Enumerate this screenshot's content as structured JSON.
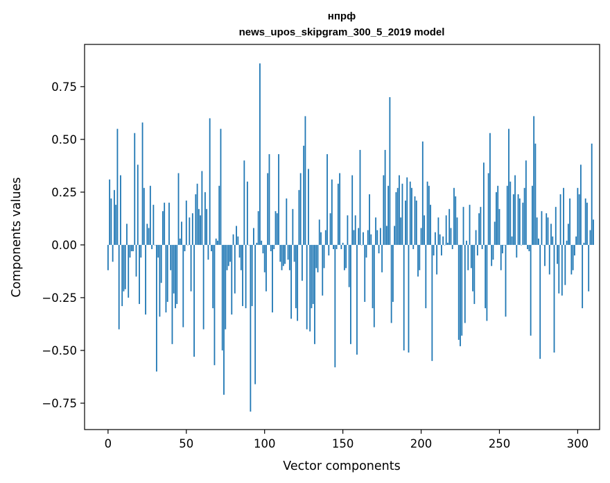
{
  "chart_data": {
    "type": "bar",
    "title_line1": "нпрф",
    "title_line2": "news_upos_skipgram_300_5_2019 model",
    "xlabel": "Vector components",
    "ylabel": "Components values",
    "xlim": [
      -15,
      314
    ],
    "ylim": [
      -0.875,
      0.95
    ],
    "x_ticks": [
      0,
      50,
      100,
      150,
      200,
      250,
      300
    ],
    "x_tick_labels": [
      "0",
      "50",
      "100",
      "150",
      "200",
      "250",
      "300"
    ],
    "y_ticks": [
      -0.75,
      -0.5,
      -0.25,
      0.0,
      0.25,
      0.5,
      0.75
    ],
    "y_tick_labels": [
      "−0.75",
      "−0.50",
      "−0.25",
      "0.00",
      "0.25",
      "0.50",
      "0.75"
    ],
    "bar_color": "#1f77b4",
    "values": [
      -0.12,
      0.31,
      0.22,
      -0.08,
      0.26,
      0.19,
      0.55,
      -0.4,
      0.33,
      -0.29,
      -0.22,
      -0.21,
      0.1,
      -0.25,
      -0.06,
      -0.03,
      -0.03,
      0.53,
      -0.15,
      0.38,
      -0.28,
      -0.06,
      0.58,
      0.27,
      -0.33,
      0.1,
      0.08,
      0.28,
      -0.02,
      0.19,
      0.0,
      -0.6,
      -0.06,
      -0.34,
      -0.18,
      0.16,
      0.2,
      -0.32,
      -0.27,
      0.2,
      -0.12,
      -0.47,
      -0.23,
      -0.3,
      -0.28,
      0.34,
      0.03,
      0.11,
      -0.39,
      -0.03,
      0.21,
      0.0,
      0.13,
      -0.22,
      0.15,
      -0.53,
      0.24,
      0.29,
      0.17,
      0.14,
      0.35,
      -0.4,
      0.25,
      0.17,
      -0.07,
      0.6,
      -0.03,
      -0.3,
      -0.57,
      0.03,
      0.02,
      0.28,
      0.55,
      -0.5,
      -0.71,
      -0.4,
      -0.12,
      -0.1,
      -0.08,
      -0.33,
      0.05,
      -0.23,
      0.09,
      0.04,
      -0.06,
      -0.12,
      -0.29,
      0.4,
      -0.3,
      0.3,
      0.0,
      -0.79,
      -0.29,
      0.08,
      -0.66,
      0.01,
      0.16,
      0.86,
      0.02,
      -0.04,
      -0.13,
      -0.22,
      0.34,
      0.43,
      -0.03,
      -0.32,
      -0.02,
      0.16,
      0.15,
      0.43,
      -0.08,
      -0.12,
      -0.1,
      -0.09,
      0.22,
      -0.07,
      -0.12,
      -0.35,
      0.17,
      -0.08,
      -0.3,
      -0.36,
      0.26,
      0.34,
      -0.17,
      0.47,
      0.61,
      -0.4,
      0.36,
      -0.41,
      -0.3,
      -0.28,
      -0.47,
      -0.11,
      -0.13,
      0.12,
      0.06,
      -0.24,
      -0.11,
      0.07,
      0.43,
      -0.05,
      0.15,
      0.31,
      -0.02,
      -0.58,
      -0.02,
      0.29,
      0.34,
      -0.02,
      0.01,
      -0.12,
      -0.11,
      0.14,
      -0.2,
      -0.47,
      0.33,
      0.07,
      0.14,
      -0.52,
      0.08,
      0.45,
      0.0,
      0.06,
      -0.27,
      -0.06,
      0.07,
      0.24,
      0.05,
      -0.3,
      -0.39,
      0.13,
      0.07,
      -0.04,
      0.08,
      -0.13,
      0.33,
      0.45,
      0.09,
      0.28,
      0.7,
      -0.37,
      -0.27,
      0.09,
      0.25,
      0.27,
      0.33,
      0.13,
      0.29,
      -0.5,
      0.21,
      0.32,
      -0.51,
      0.3,
      0.27,
      -0.02,
      0.23,
      0.21,
      -0.15,
      -0.12,
      0.08,
      0.49,
      0.14,
      -0.3,
      0.3,
      0.28,
      0.19,
      -0.55,
      -0.05,
      0.06,
      -0.14,
      0.13,
      0.05,
      -0.05,
      0.04,
      0.0,
      0.14,
      0.01,
      0.17,
      0.08,
      -0.02,
      0.27,
      0.23,
      0.13,
      -0.45,
      -0.48,
      -0.43,
      0.18,
      -0.37,
      0.02,
      -0.12,
      0.19,
      -0.11,
      -0.22,
      -0.28,
      0.07,
      -0.05,
      0.15,
      0.18,
      -0.02,
      0.39,
      -0.3,
      -0.36,
      0.34,
      0.53,
      -0.1,
      -0.07,
      0.11,
      0.25,
      0.28,
      0.17,
      -0.12,
      -0.04,
      0.0,
      -0.34,
      0.28,
      0.55,
      0.3,
      0.04,
      0.24,
      0.33,
      -0.06,
      0.24,
      0.22,
      0.0,
      0.2,
      0.27,
      0.4,
      -0.02,
      -0.03,
      -0.43,
      0.28,
      0.61,
      0.48,
      0.13,
      0.03,
      -0.54,
      0.16,
      0.0,
      -0.1,
      0.15,
      0.13,
      -0.14,
      0.1,
      0.04,
      -0.51,
      0.18,
      -0.09,
      -0.23,
      0.24,
      -0.24,
      0.27,
      -0.19,
      0.02,
      0.1,
      0.22,
      -0.14,
      -0.12,
      -0.05,
      0.04,
      0.27,
      0.24,
      0.38,
      -0.3,
      0.01,
      0.22,
      0.2,
      -0.22,
      0.07,
      0.48,
      0.12
    ]
  }
}
